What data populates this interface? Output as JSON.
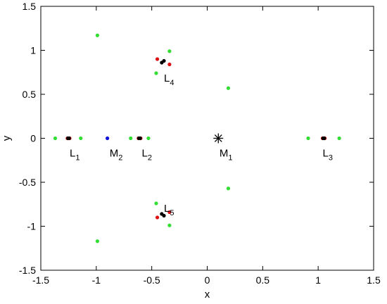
{
  "chart_data": {
    "type": "scatter",
    "xlabel": "x",
    "ylabel": "y",
    "xlim": [
      -1.5,
      1.5
    ],
    "ylim": [
      -1.5,
      1.5
    ],
    "xticks": [
      -1.5,
      -1,
      -0.5,
      0,
      0.5,
      1,
      1.5
    ],
    "xtick_labels": [
      "-1.5",
      "-1",
      "-0.5",
      "0",
      "0.5",
      "1",
      "1.5"
    ],
    "yticks": [
      -1.5,
      -1,
      -0.5,
      0,
      0.5,
      1,
      1.5
    ],
    "ytick_labels": [
      "-1.5",
      "-1",
      "-0.5",
      "0",
      "0.5",
      "1",
      "1.5"
    ],
    "grid": false,
    "colors": {
      "green": "#33dd33",
      "red": "#dd1111",
      "black": "#000000",
      "blue": "#1111dd"
    },
    "series": [
      {
        "color": "green",
        "points": [
          [
            -1.37,
            0
          ],
          [
            -1.14,
            0
          ],
          [
            -0.69,
            0
          ],
          [
            -0.53,
            0
          ],
          [
            0.91,
            0
          ],
          [
            1.19,
            0
          ],
          [
            -0.99,
            1.17
          ],
          [
            -0.99,
            -1.17
          ],
          [
            0.19,
            0.57
          ],
          [
            0.19,
            -0.57
          ],
          [
            -0.34,
            0.99
          ],
          [
            -0.46,
            0.74
          ],
          [
            -0.34,
            -0.99
          ],
          [
            -0.46,
            -0.74
          ]
        ]
      },
      {
        "color": "red",
        "points": [
          [
            -1.26,
            0
          ],
          [
            -1.24,
            0
          ],
          [
            -0.62,
            0
          ],
          [
            -0.6,
            0
          ],
          [
            1.04,
            0
          ],
          [
            1.06,
            0
          ],
          [
            -0.45,
            0.9
          ],
          [
            -0.34,
            0.84
          ],
          [
            -0.45,
            -0.9
          ],
          [
            -0.34,
            -0.84
          ]
        ]
      },
      {
        "color": "black",
        "points": [
          [
            -1.255,
            0
          ],
          [
            -1.245,
            0
          ],
          [
            -0.615,
            0
          ],
          [
            -0.605,
            0
          ],
          [
            1.045,
            0
          ],
          [
            1.055,
            0
          ],
          [
            -0.41,
            0.86
          ],
          [
            -0.39,
            0.88
          ],
          [
            -0.41,
            -0.86
          ],
          [
            -0.39,
            -0.88
          ]
        ]
      },
      {
        "color": "blue",
        "points": [
          [
            -0.9,
            0
          ]
        ]
      }
    ],
    "star_marker": {
      "x": 0.1,
      "y": 0
    },
    "annotations": [
      {
        "name": "L",
        "sub": "1",
        "x": -1.24,
        "y": -0.11
      },
      {
        "name": "M",
        "sub": "2",
        "x": -0.88,
        "y": -0.11
      },
      {
        "name": "L",
        "sub": "2",
        "x": -0.59,
        "y": -0.11
      },
      {
        "name": "M",
        "sub": "1",
        "x": 0.11,
        "y": -0.11
      },
      {
        "name": "L",
        "sub": "3",
        "x": 1.04,
        "y": -0.11
      },
      {
        "name": "L",
        "sub": "4",
        "x": -0.39,
        "y": 0.74
      },
      {
        "name": "L",
        "sub": "5",
        "x": -0.39,
        "y": -0.74
      }
    ]
  }
}
